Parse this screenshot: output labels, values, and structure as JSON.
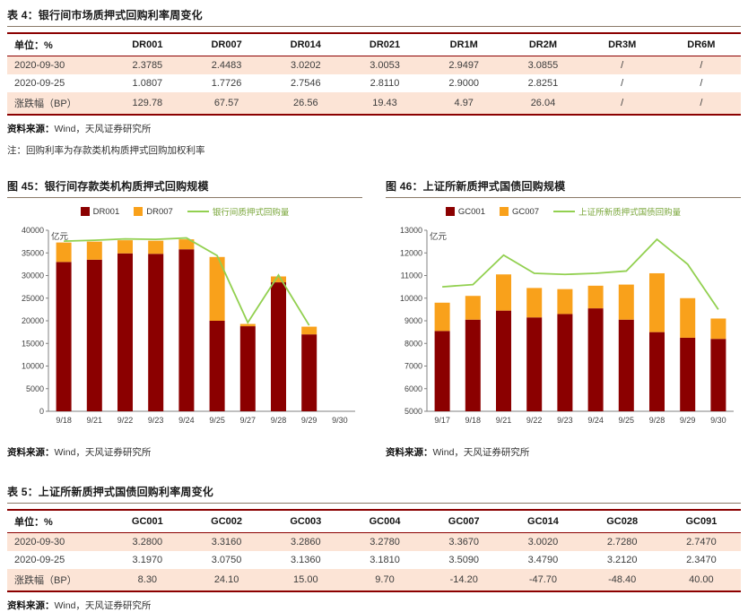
{
  "colors": {
    "maroon": "#8B0000",
    "orange": "#F9A11B",
    "green_line": "#92D050",
    "green_text": "#79A63A",
    "row_pink": "#FCE4D6",
    "title_rule": "#8A7967"
  },
  "source": {
    "prefix": "资料来源：",
    "text": "Wind，天风证券研究所"
  },
  "table4": {
    "title": "表 4：银行间市场质押式回购利率周变化",
    "headers": [
      "单位：%",
      "DR001",
      "DR007",
      "DR014",
      "DR021",
      "DR1M",
      "DR2M",
      "DR3M",
      "DR6M"
    ],
    "rows": [
      [
        "2020-09-30",
        "2.3785",
        "2.4483",
        "3.0202",
        "3.0053",
        "2.9497",
        "3.0855",
        "/",
        "/"
      ],
      [
        "2020-09-25",
        "1.0807",
        "1.7726",
        "2.7546",
        "2.8110",
        "2.9000",
        "2.8251",
        "/",
        "/"
      ],
      [
        "涨跌幅（BP）",
        "129.78",
        "67.57",
        "26.56",
        "19.43",
        "4.97",
        "26.04",
        "/",
        "/"
      ]
    ],
    "note": "注：回购利率为存款类机构质押式回购加权利率"
  },
  "table5": {
    "title": "表 5：上证所新质押式国债回购利率周变化",
    "headers": [
      "单位：%",
      "GC001",
      "GC002",
      "GC003",
      "GC004",
      "GC007",
      "GC014",
      "GC028",
      "GC091"
    ],
    "rows": [
      [
        "2020-09-30",
        "3.2800",
        "3.3160",
        "3.2860",
        "3.2780",
        "3.3670",
        "3.0020",
        "2.7280",
        "2.7470"
      ],
      [
        "2020-09-25",
        "3.1970",
        "3.0750",
        "3.1360",
        "3.1810",
        "3.5090",
        "3.4790",
        "3.2120",
        "2.3470"
      ],
      [
        "涨跌幅（BP）",
        "8.30",
        "24.10",
        "15.00",
        "9.70",
        "-14.20",
        "-47.70",
        "-48.40",
        "40.00"
      ]
    ]
  },
  "chart_data": [
    {
      "id": "chart45",
      "type": "bar",
      "stacked": true,
      "title": "图 45：银行间存款类机构质押式回购规模",
      "unit_label": "亿元",
      "categories": [
        "9/18",
        "9/21",
        "9/22",
        "9/23",
        "9/24",
        "9/25",
        "9/27",
        "9/28",
        "9/29",
        "9/30"
      ],
      "series": [
        {
          "name": "DR001",
          "color": "#8B0000",
          "values": [
            33000,
            33500,
            34900,
            34800,
            35800,
            20000,
            18800,
            28500,
            17000,
            null
          ]
        },
        {
          "name": "DR007",
          "color": "#F9A11B",
          "values": [
            4300,
            4000,
            2900,
            2900,
            2200,
            14100,
            500,
            1300,
            1700,
            null
          ]
        }
      ],
      "line": {
        "name": "银行间质押式回购量",
        "color": "#92D050",
        "label_color": "#79A63A",
        "values": [
          37600,
          37800,
          38100,
          38000,
          38300,
          34400,
          19600,
          30100,
          19000,
          null
        ]
      },
      "ylim": [
        0,
        40000
      ],
      "ystep": 5000,
      "grid": false,
      "legend_position": "top"
    },
    {
      "id": "chart46",
      "type": "bar",
      "stacked": true,
      "title": "图 46：上证所新质押式国债回购规模",
      "unit_label": "亿元",
      "categories": [
        "9/17",
        "9/18",
        "9/21",
        "9/22",
        "9/23",
        "9/24",
        "9/25",
        "9/28",
        "9/29",
        "9/30"
      ],
      "series": [
        {
          "name": "GC001",
          "color": "#8B0000",
          "values": [
            8550,
            9050,
            9450,
            9150,
            9300,
            9550,
            9050,
            8500,
            8250,
            8200
          ]
        },
        {
          "name": "GC007",
          "color": "#F9A11B",
          "values": [
            1250,
            1050,
            1600,
            1300,
            1100,
            1000,
            1550,
            2600,
            1750,
            900
          ]
        }
      ],
      "line": {
        "name": "上证所新质押式国债回购量",
        "color": "#92D050",
        "label_color": "#79A63A",
        "values": [
          10500,
          10600,
          11900,
          11100,
          11050,
          11100,
          11200,
          12600,
          11500,
          9500
        ]
      },
      "ylim": [
        5000,
        13000
      ],
      "ystep": 1000,
      "grid": false,
      "legend_position": "top"
    }
  ]
}
